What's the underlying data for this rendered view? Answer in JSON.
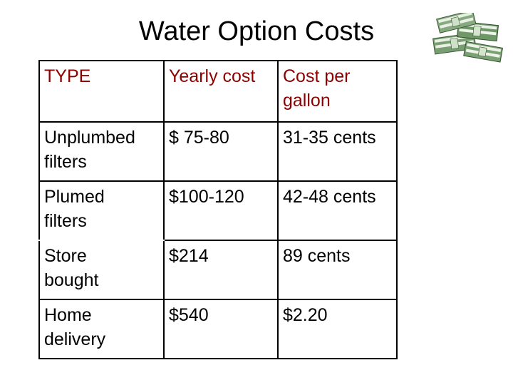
{
  "slide": {
    "title": "Water Option Costs"
  },
  "table": {
    "headers": [
      "TYPE",
      "Yearly cost",
      "Cost per\ngallon"
    ],
    "rows": [
      [
        "Unplumbed\nfilters",
        "$ 75-80",
        "31-35 cents"
      ],
      [
        "Plumed\nfilters",
        "$100-120",
        "42-48 cents"
      ],
      [
        "Store\nbought",
        "$214",
        "89 cents"
      ],
      [
        "Home\ndelivery",
        "$540",
        "$2.20"
      ]
    ]
  },
  "decor": {
    "illustration": "money-stack-icon",
    "header_color": "#8B0000",
    "bill_color": "#5f8f5a"
  }
}
